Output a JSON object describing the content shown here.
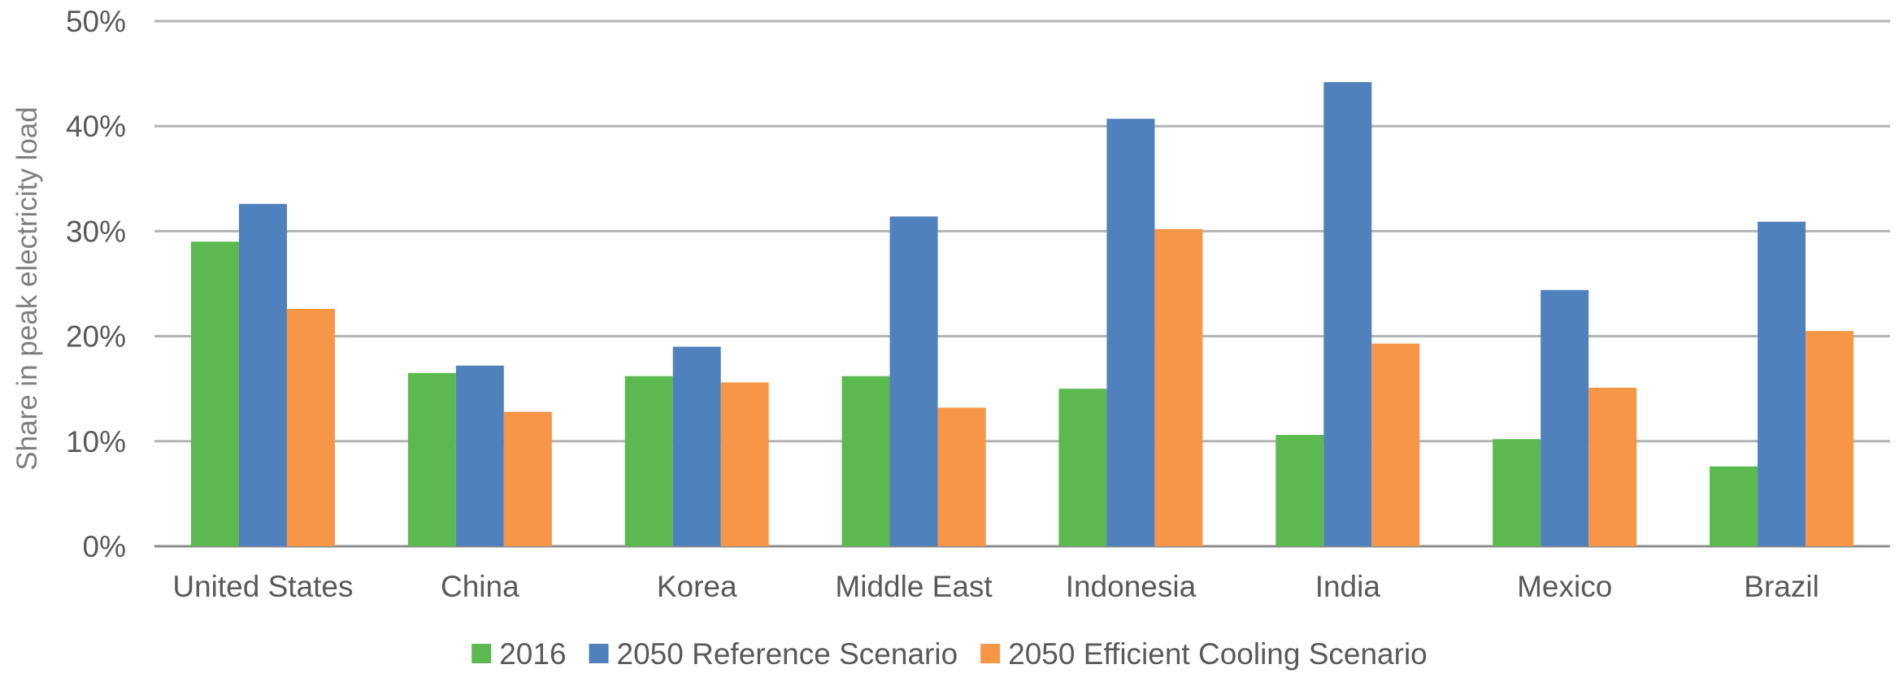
{
  "chart_data": {
    "type": "bar",
    "title": "",
    "xlabel": "",
    "ylabel": "Share in peak electricity load",
    "ylim": [
      0,
      50
    ],
    "ytick_values": [
      0,
      10,
      20,
      30,
      40,
      50
    ],
    "ytick_labels": [
      "0%",
      "10%",
      "20%",
      "30%",
      "40%",
      "50%"
    ],
    "grid": true,
    "legend_position": "bottom",
    "categories": [
      "United States",
      "China",
      "Korea",
      "Middle East",
      "Indonesia",
      "India",
      "Mexico",
      "Brazil"
    ],
    "series": [
      {
        "name": "2016",
        "color": "#5cb94f",
        "values": [
          29,
          16.5,
          16.2,
          16.2,
          15,
          10.6,
          10.2,
          7.6
        ]
      },
      {
        "name": "2050 Reference Scenario",
        "color": "#4f81bd",
        "values": [
          32.6,
          17.2,
          19,
          31.4,
          40.7,
          44.2,
          24.4,
          30.9
        ]
      },
      {
        "name": "2050 Efficient Cooling Scenario",
        "color": "#f79646",
        "values": [
          22.6,
          12.8,
          15.6,
          13.2,
          30.2,
          19.3,
          15.1,
          20.5
        ]
      }
    ]
  }
}
